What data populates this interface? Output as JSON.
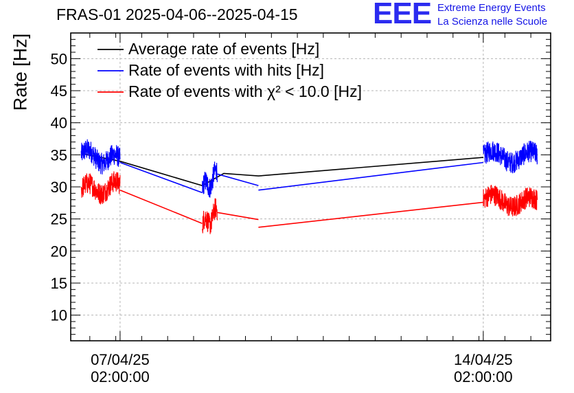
{
  "header": {
    "title": "FRAS-01 2025-04-06--2025-04-15",
    "logo_text": "EEE",
    "brand_line1": "Extreme Energy Events",
    "brand_line2": "La Scienza nelle Scuole"
  },
  "colors": {
    "average": "#000000",
    "hits": "#0000ff",
    "chi2": "#ff0000",
    "grid": "#b4b4b4",
    "logo": "#2b2bf0"
  },
  "chart_data": {
    "type": "line",
    "title": "FRAS-01 2025-04-06--2025-04-15",
    "ylabel": "Rate [Hz]",
    "xlabel": "",
    "ylim": [
      6,
      54
    ],
    "xlim": [
      "2025-04-06 03:10:00",
      "2025-04-15 09:10:00"
    ],
    "yticks": [
      10,
      15,
      20,
      25,
      30,
      35,
      40,
      45,
      50
    ],
    "xticks": [
      {
        "label_date": "07/04/25",
        "label_time": "02:00:00",
        "x": "2025-04-07 02:00:00"
      },
      {
        "label_date": "14/04/25",
        "label_time": "02:00:00",
        "x": "2025-04-14 02:00:00"
      }
    ],
    "grid": true,
    "legend_position": "top-left",
    "series": [
      {
        "name": "Average rate of events [Hz]",
        "color": "#000000",
        "x": [
          "2025-04-06 08:00:00",
          "2025-04-07 02:00:00",
          "2025-04-08 16:00:00",
          "2025-04-09 02:00:00",
          "2025-04-09 18:00:00",
          "2025-04-14 02:00:00"
        ],
        "y": [
          35.2,
          34.0,
          30.2,
          32.1,
          31.7,
          34.6
        ]
      },
      {
        "name": "Rate of events with hits [Hz]",
        "color": "#0000ff",
        "segments": [
          {
            "x": [
              "2025-04-06 08:00:00",
              "2025-04-07 02:00:00"
            ],
            "y": [
              35.1,
              34.0
            ],
            "noisy": true
          },
          {
            "x": [
              "2025-04-07 02:00:00",
              "2025-04-08 16:00:00"
            ],
            "y": [
              33.8,
              29.1
            ]
          },
          {
            "x": [
              "2025-04-08 16:00:00",
              "2025-04-08 23:00:00"
            ],
            "y": [
              29.5,
              32.0
            ],
            "noisy": true
          },
          {
            "x": [
              "2025-04-08 23:00:00",
              "2025-04-09 18:00:00"
            ],
            "y": [
              32.0,
              30.2
            ]
          },
          {
            "x": [
              "2025-04-09 18:00:00",
              "2025-04-14 02:00:00"
            ],
            "y": [
              29.5,
              33.8
            ]
          },
          {
            "x": [
              "2025-04-14 02:00:00",
              "2025-04-15 03:00:00"
            ],
            "y": [
              34.8,
              34.6
            ],
            "noisy": true
          }
        ]
      },
      {
        "name": "Rate of events with χ² < 10.0 [Hz]",
        "color": "#ff0000",
        "segments": [
          {
            "x": [
              "2025-04-06 08:00:00",
              "2025-04-07 02:00:00"
            ],
            "y": [
              29.6,
              30.0
            ],
            "noisy": true
          },
          {
            "x": [
              "2025-04-07 02:00:00",
              "2025-04-08 16:00:00"
            ],
            "y": [
              29.5,
              24.3
            ]
          },
          {
            "x": [
              "2025-04-08 16:00:00",
              "2025-04-08 23:00:00"
            ],
            "y": [
              24.0,
              26.0
            ],
            "noisy": true
          },
          {
            "x": [
              "2025-04-08 23:00:00",
              "2025-04-09 18:00:00"
            ],
            "y": [
              26.0,
              24.9
            ]
          },
          {
            "x": [
              "2025-04-09 18:00:00",
              "2025-04-14 02:00:00"
            ],
            "y": [
              23.7,
              27.6
            ]
          },
          {
            "x": [
              "2025-04-14 02:00:00",
              "2025-04-15 03:00:00"
            ],
            "y": [
              28.0,
              27.5
            ],
            "noisy": true
          }
        ]
      }
    ]
  }
}
